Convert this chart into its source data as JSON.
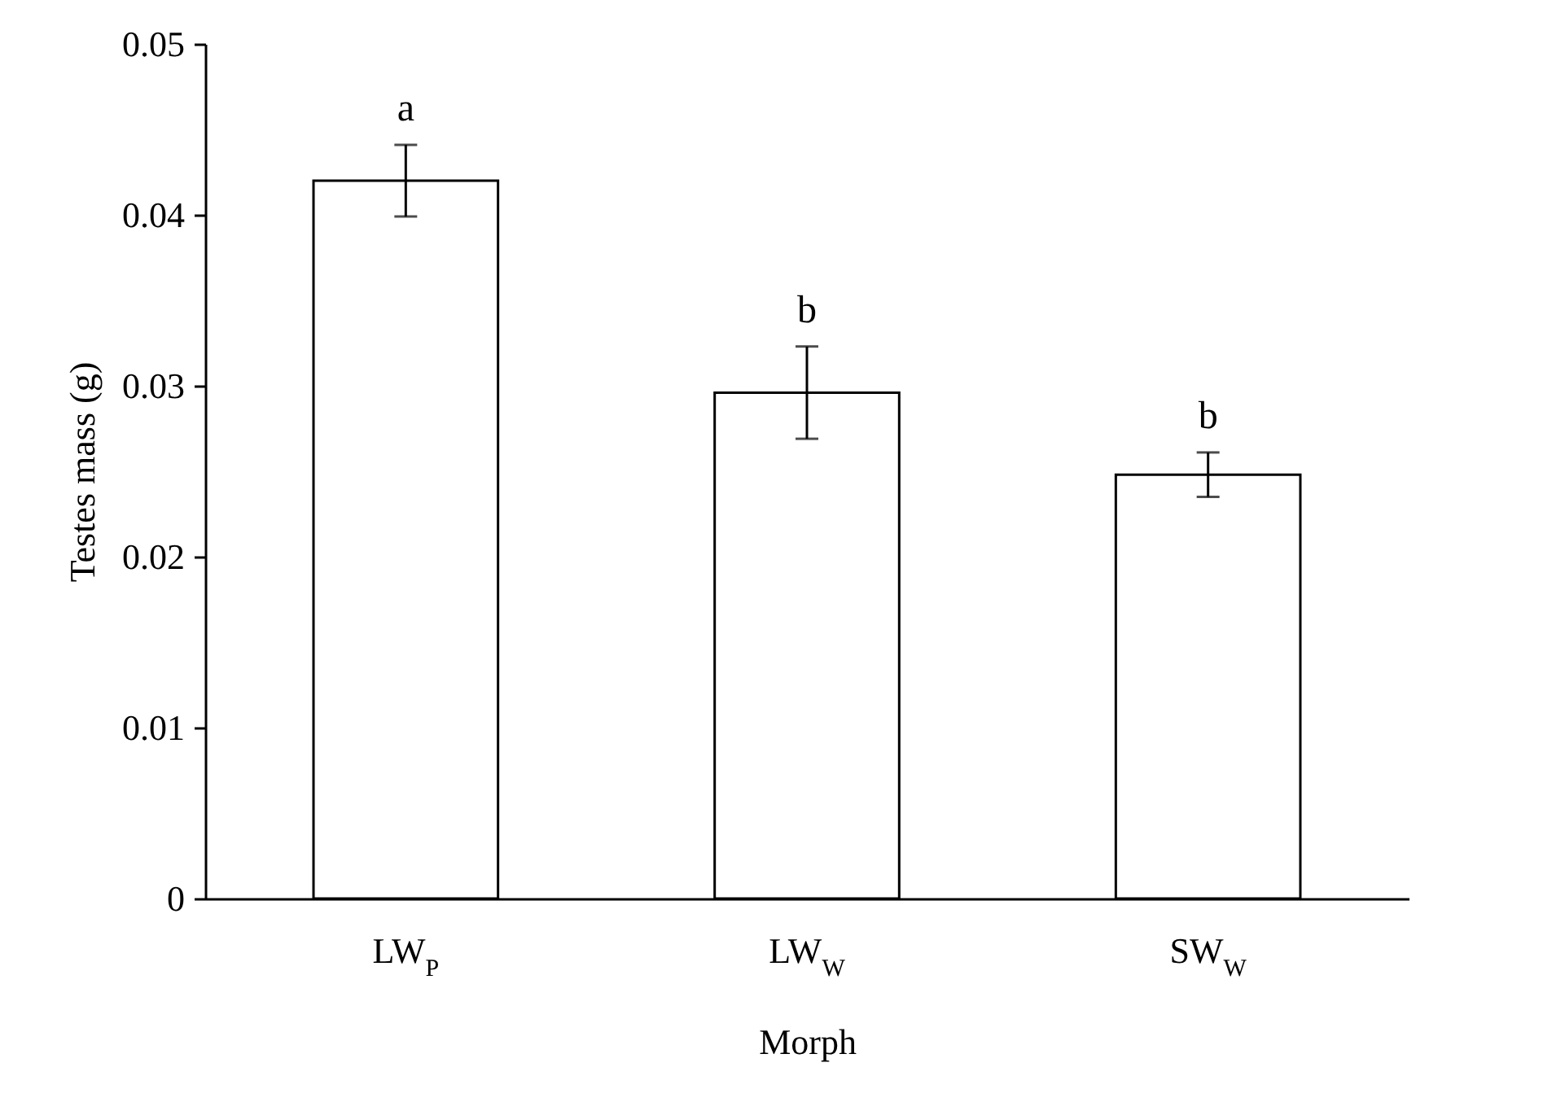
{
  "chart_data": {
    "type": "bar",
    "xlabel": "Morph",
    "ylabel": "Testes mass (g)",
    "categories": [
      "LW$_{P}$",
      "LW$_{W}$",
      "SW$_{W}$"
    ],
    "values": [
      0.042,
      0.0296,
      0.0248
    ],
    "errors": [
      0.0021,
      0.0027,
      0.0013
    ],
    "color": "#ffffff",
    "ylim": [
      0,
      0.05
    ],
    "yticks": [
      0,
      0.01,
      0.02,
      0.03,
      0.04,
      0.05
    ],
    "annotations": [
      "a",
      "b",
      "b"
    ]
  }
}
